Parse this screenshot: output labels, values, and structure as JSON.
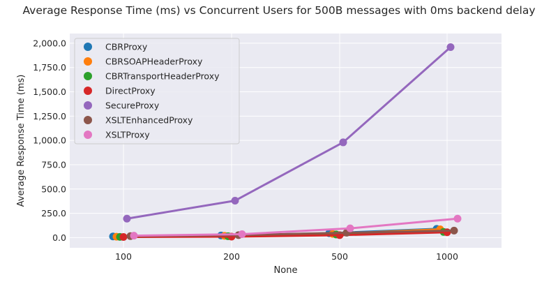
{
  "chart_data": {
    "type": "line",
    "title": "Average Response Time (ms) vs Concurrent Users for 500B messages with 0ms backend delay",
    "xlabel": "None",
    "ylabel": "Average Response Time (ms)",
    "x_scale": "categorical",
    "categories": [
      "100",
      "200",
      "500",
      "1000"
    ],
    "ylim": [
      -105,
      2100
    ],
    "yticks": [
      0,
      250,
      500,
      750,
      1000,
      1250,
      1500,
      1750,
      2000
    ],
    "ytick_labels": [
      "0.0",
      "250.0",
      "500.0",
      "750.0",
      "1,000.0",
      "1,250.0",
      "1,500.0",
      "1,750.0",
      "2,000.0"
    ],
    "grid": true,
    "legend_position": "top-left",
    "series": [
      {
        "name": "CBRProxy",
        "color": "#1f77b4",
        "values": [
          12,
          22,
          45,
          90
        ]
      },
      {
        "name": "CBRSOAPHeaderProxy",
        "color": "#ff7f0e",
        "values": [
          9,
          18,
          38,
          85
        ]
      },
      {
        "name": "CBRTransportHeaderProxy",
        "color": "#2ca02c",
        "values": [
          7,
          14,
          32,
          58
        ]
      },
      {
        "name": "DirectProxy",
        "color": "#d62728",
        "values": [
          6,
          10,
          25,
          55
        ]
      },
      {
        "name": "SecureProxy",
        "color": "#9467bd",
        "values": [
          195,
          380,
          980,
          1960
        ]
      },
      {
        "name": "XSLTEnhancedProxy",
        "color": "#8c564b",
        "values": [
          15,
          25,
          50,
          72
        ]
      },
      {
        "name": "XSLTProxy",
        "color": "#e377c2",
        "values": [
          20,
          35,
          95,
          195
        ]
      }
    ]
  }
}
